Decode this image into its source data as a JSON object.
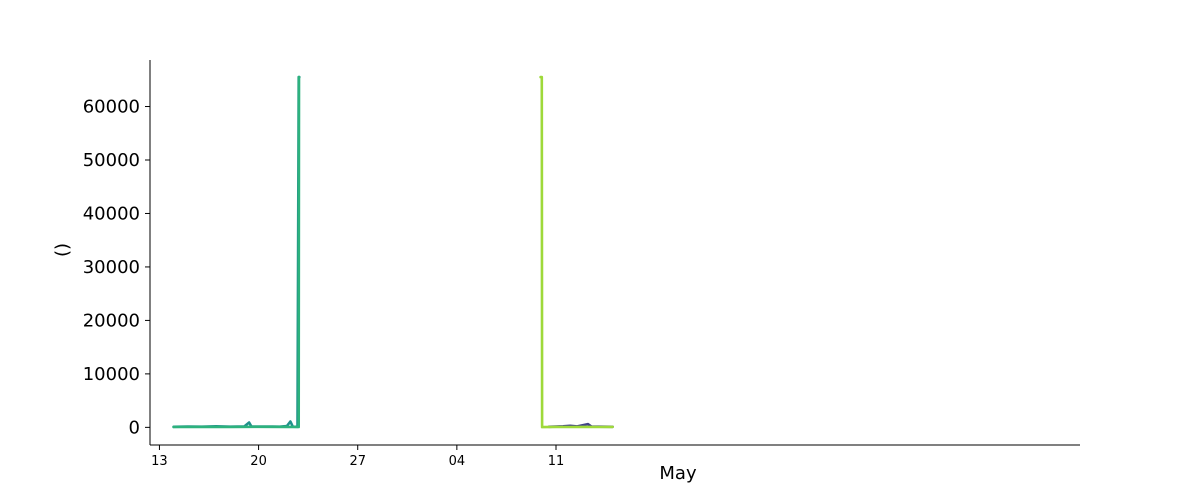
{
  "chart_data": {
    "type": "line",
    "title": "",
    "xlabel": "May",
    "ylabel": "()",
    "ylim": [
      -3300,
      68700
    ],
    "xlim": [
      "2016-04-12T08:00",
      "2016-06-17T00:00"
    ],
    "yticks": [
      0,
      10000,
      20000,
      30000,
      40000,
      50000,
      60000
    ],
    "ytick_labels": [
      "0",
      "10000",
      "20000",
      "30000",
      "40000",
      "50000",
      "60000"
    ],
    "xticks": [
      {
        "date": "2016-04-13",
        "label": "13"
      },
      {
        "date": "2016-04-20",
        "label": "20"
      },
      {
        "date": "2016-04-27",
        "label": "27"
      },
      {
        "date": "2016-05-04",
        "label": "04"
      },
      {
        "date": "2016-05-11",
        "label": "11"
      }
    ],
    "grid": false,
    "series": [
      {
        "color": "#21918c",
        "points": [
          [
            "2016-04-14T00:00",
            100
          ],
          [
            "2016-04-15T00:00",
            150
          ],
          [
            "2016-04-16T00:00",
            120
          ],
          [
            "2016-04-17T00:00",
            200
          ],
          [
            "2016-04-18T00:00",
            130
          ],
          [
            "2016-04-19T00:00",
            180
          ],
          [
            "2016-04-19T08:00",
            900
          ],
          [
            "2016-04-19T12:00",
            150
          ],
          [
            "2016-04-20T00:00",
            140
          ],
          [
            "2016-04-21T00:00",
            160
          ],
          [
            "2016-04-21T12:00",
            120
          ],
          [
            "2016-04-22T00:00",
            250
          ],
          [
            "2016-04-22T06:00",
            1100
          ],
          [
            "2016-04-22T10:00",
            120
          ],
          [
            "2016-04-22T18:00",
            100
          ],
          [
            "2016-04-22T20:00",
            65500
          ],
          [
            "2016-04-22T21:00",
            65500
          ]
        ]
      },
      {
        "color": "#2db27d",
        "points": [
          [
            "2016-04-14T00:00",
            60
          ],
          [
            "2016-04-16T00:00",
            90
          ],
          [
            "2016-04-18T00:00",
            70
          ],
          [
            "2016-04-20T00:00",
            100
          ],
          [
            "2016-04-22T00:00",
            80
          ],
          [
            "2016-04-22T20:00",
            60
          ],
          [
            "2016-04-22T20:30",
            65500
          ]
        ]
      },
      {
        "color": "#414487",
        "points": [
          [
            "2016-05-10T12:00",
            100
          ],
          [
            "2016-05-11T00:00",
            150
          ],
          [
            "2016-05-11T12:00",
            200
          ],
          [
            "2016-05-12T00:00",
            300
          ],
          [
            "2016-05-12T12:00",
            180
          ],
          [
            "2016-05-13T06:00",
            600
          ],
          [
            "2016-05-13T12:00",
            150
          ],
          [
            "2016-05-14T00:00",
            120
          ],
          [
            "2016-05-15T00:00",
            100
          ]
        ]
      },
      {
        "color": "#9ed93a",
        "points": [
          [
            "2016-05-09T22:00",
            65500
          ],
          [
            "2016-05-10T00:00",
            65500
          ],
          [
            "2016-05-10T00:30",
            50
          ],
          [
            "2016-05-11T00:00",
            80
          ],
          [
            "2016-05-12T00:00",
            70
          ],
          [
            "2016-05-13T00:00",
            90
          ],
          [
            "2016-05-14T00:00",
            60
          ],
          [
            "2016-05-15T00:00",
            80
          ]
        ]
      }
    ]
  }
}
